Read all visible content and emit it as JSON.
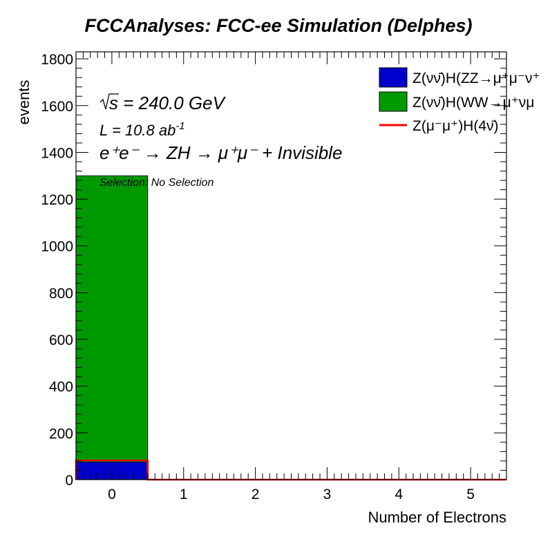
{
  "chart_data": {
    "type": "bar",
    "stacked": true,
    "title": "FCCAnalyses: FCC-ee Simulation (Delphes)",
    "xlabel": "Number of Electrons",
    "ylabel": "events",
    "xlim": [
      -0.5,
      5.5
    ],
    "ylim": [
      0,
      1830
    ],
    "x_ticks": [
      "0",
      "1",
      "2",
      "3",
      "4",
      "5"
    ],
    "y_ticks": [
      "0",
      "200",
      "400",
      "600",
      "800",
      "1000",
      "1200",
      "1400",
      "1600",
      "1800"
    ],
    "x_tick_values": [
      0,
      1,
      2,
      3,
      4,
      5
    ],
    "y_tick_values": [
      0,
      200,
      400,
      600,
      800,
      1000,
      1200,
      1400,
      1600,
      1800
    ],
    "bin_edges": [
      -0.5,
      0.5,
      1.5,
      2.5,
      3.5,
      4.5,
      5.5
    ],
    "grid": false,
    "legend_position": "top-right",
    "series": [
      {
        "name": "Z(νν̄)H(ZZ→μ⁺μ⁻ν⁺",
        "color": "#0000cc",
        "style": "filled",
        "values": [
          75,
          0,
          0,
          0,
          0,
          0
        ]
      },
      {
        "name": "Z(νν̄)H(WW→μ⁺νμ",
        "color": "#009900",
        "style": "filled",
        "values": [
          1225,
          0,
          0,
          0,
          0,
          0
        ]
      },
      {
        "name": "Z(μ⁻μ⁺)H(4ν̄)",
        "color": "#ff0000",
        "style": "line",
        "values": [
          82,
          0,
          0,
          0,
          0,
          0
        ]
      }
    ],
    "annotations": {
      "sqrt_s": "√s = 240.0 GeV",
      "luminosity": "L = 10.8 ab",
      "luminosity_exp": "-1",
      "process": "e⁺e⁻ → ZH → μ⁺μ⁻ + Invisible",
      "selection": "Selection: No Selection"
    }
  }
}
